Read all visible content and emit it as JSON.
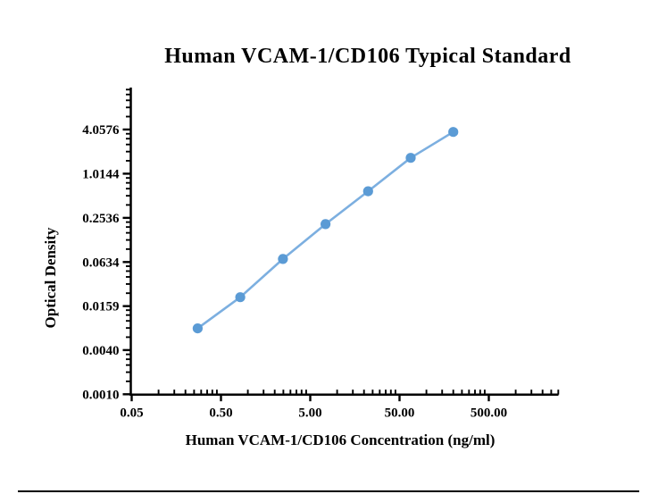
{
  "page": {
    "background": "#ffffff",
    "divider_color": "#000000"
  },
  "chart_data": {
    "type": "line",
    "title": "Human VCAM-1/CD106 Typical Standard",
    "xlabel": "Human VCAM-1/CD106 Concentration (ng/ml)",
    "ylabel": "Optical Density",
    "x_scale": "log",
    "y_scale": "log",
    "grid": false,
    "legend": false,
    "axis_color": "#000000",
    "x_tick_labels": [
      "0.05",
      "0.50",
      "5.00",
      "50.00",
      "500.00"
    ],
    "x_tick_values": [
      0.05,
      0.5,
      5,
      50,
      500
    ],
    "y_tick_labels": [
      "4.0576",
      "1.0144",
      "0.2536",
      "0.0634",
      "0.0159",
      "0.0040",
      "0.0010"
    ],
    "y_tick_values": [
      4.0576,
      1.0144,
      0.2536,
      0.0634,
      0.0159,
      0.004,
      0.001
    ],
    "x_range": [
      0.05,
      3000
    ],
    "y_range": [
      0.001,
      15.5
    ],
    "y_tick_ratio": 4,
    "series": [
      {
        "name": "Typical Standard",
        "x": [
          0.274,
          0.823,
          2.469,
          7.407,
          22.222,
          66.667,
          200
        ],
        "y": [
          0.0079,
          0.021,
          0.0698,
          0.208,
          0.584,
          1.666,
          3.758
        ],
        "marker": "circle",
        "marker_color": "#5B9BD5",
        "line_color": "#7CAFE0"
      }
    ]
  }
}
